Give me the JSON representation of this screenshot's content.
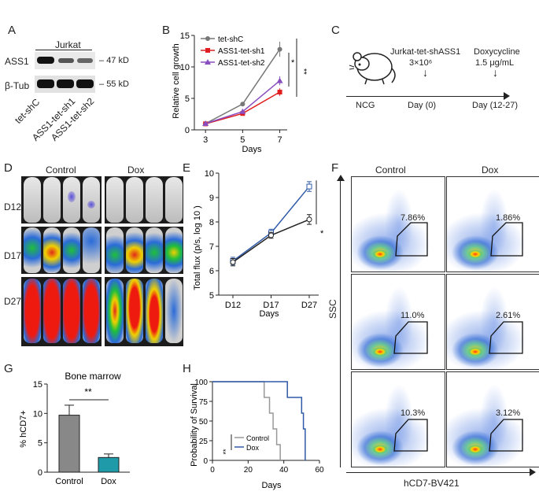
{
  "panel_labels": {
    "A": "A",
    "B": "B",
    "C": "C",
    "D": "D",
    "E": "E",
    "F": "F",
    "G": "G",
    "H": "H"
  },
  "panelA": {
    "header": "Jurkat",
    "rows": [
      {
        "name": "ASS1",
        "marker": "47 kD"
      },
      {
        "name": "β-Tub",
        "marker": "55 kD"
      }
    ],
    "lanes": [
      "tet-shC",
      "ASS1-tet-sh1",
      "ASS1-tet-sh2"
    ]
  },
  "panelB": {
    "ylabel": "Relative cell growth",
    "xlabel": "Days",
    "sig_upper": "*",
    "sig_lower": "**"
  },
  "panelC": {
    "host": "NCG",
    "step1_title": "Jurkat-tet-shASS1",
    "step1_dose": "3×10⁶",
    "step1_day": "Day (0)",
    "step2_title": "Doxycycline",
    "step2_dose": "1.5 μg/mL",
    "step2_day": "Day (12-27)"
  },
  "panelD": {
    "groups": [
      "Control",
      "Dox"
    ],
    "days": [
      "D12",
      "D17",
      "D27"
    ]
  },
  "panelE": {
    "ylabel": "Total flux (p/s, log 10 )",
    "xlabel": "Days",
    "sig": "*"
  },
  "panelF": {
    "groups": [
      "Control",
      "Dox"
    ],
    "ylabel": "SSC",
    "xlabel": "hCD7-BV421",
    "percentages": [
      [
        "7.86%",
        "1.86%"
      ],
      [
        "11.0%",
        "2.61%"
      ],
      [
        "10.3%",
        "3.12%"
      ]
    ]
  },
  "panelG": {
    "title": "Bone marrow",
    "ylabel": "% hCD7+",
    "sig": "**"
  },
  "panelH": {
    "ylabel": "Probability of Survival",
    "xlabel": "Days",
    "sig": "**"
  },
  "chart_data": [
    {
      "id": "B",
      "type": "line",
      "title": "",
      "xlabel": "Days",
      "ylabel": "Relative cell growth",
      "x": [
        3,
        5,
        7
      ],
      "xlim": [
        2.4,
        7.4
      ],
      "ylim": [
        0,
        15
      ],
      "yticks": [
        0,
        5,
        10,
        15
      ],
      "xticks": [
        3,
        5,
        7
      ],
      "series": [
        {
          "name": "tet-shC",
          "color": "#777777",
          "marker": "circle",
          "values": [
            1.0,
            4.1,
            12.8
          ],
          "err": [
            0.1,
            0.2,
            1.2
          ]
        },
        {
          "name": "ASS1-tet-sh1",
          "color": "#e02020",
          "marker": "square",
          "values": [
            0.95,
            2.6,
            6.0
          ],
          "err": [
            0.1,
            0.2,
            0.6
          ]
        },
        {
          "name": "ASS1-tet-sh2",
          "color": "#8a4fbf",
          "marker": "triangle",
          "values": [
            1.0,
            2.9,
            7.8
          ],
          "err": [
            0.1,
            0.2,
            0.7
          ]
        }
      ]
    },
    {
      "id": "E",
      "type": "line",
      "xlabel": "Days",
      "ylabel": "Total flux (p/s, log 10 )",
      "categories": [
        "D12",
        "D17",
        "D27"
      ],
      "ylim": [
        5,
        10
      ],
      "yticks": [
        5,
        6,
        7,
        8,
        9,
        10
      ],
      "series": [
        {
          "name": "Control",
          "color": "#2f5aa8",
          "marker": "square",
          "values": [
            6.4,
            7.55,
            9.45
          ],
          "err": [
            0.15,
            0.15,
            0.2
          ]
        },
        {
          "name": "Dox",
          "color": "#222222",
          "marker": "circle",
          "values": [
            6.35,
            7.45,
            8.1
          ],
          "err": [
            0.15,
            0.12,
            0.2
          ]
        }
      ]
    },
    {
      "id": "G",
      "type": "bar",
      "title": "Bone marrow",
      "ylabel": "% hCD7+",
      "categories": [
        "Control",
        "Dox"
      ],
      "values": [
        9.7,
        2.5
      ],
      "err": [
        1.7,
        0.6
      ],
      "colors": [
        "#888888",
        "#1f9aa8"
      ],
      "ylim": [
        0,
        15
      ],
      "yticks": [
        0,
        5,
        10,
        15
      ]
    },
    {
      "id": "H",
      "type": "line",
      "xlabel": "Days",
      "ylabel": "Probability of Survival",
      "xlim": [
        0,
        60
      ],
      "ylim": [
        0,
        100
      ],
      "xticks": [
        0,
        20,
        40,
        60
      ],
      "yticks": [
        0,
        25,
        50,
        75,
        100
      ],
      "series": [
        {
          "name": "Control",
          "color": "#999999",
          "steps": [
            [
              0,
              100
            ],
            [
              29,
              100
            ],
            [
              29,
              80
            ],
            [
              32,
              80
            ],
            [
              32,
              60
            ],
            [
              34,
              60
            ],
            [
              34,
              40
            ],
            [
              36,
              40
            ],
            [
              36,
              20
            ],
            [
              38,
              20
            ],
            [
              38,
              0
            ]
          ]
        },
        {
          "name": "Dox",
          "color": "#2f5aa8",
          "steps": [
            [
              0,
              100
            ],
            [
              42,
              100
            ],
            [
              42,
              80
            ],
            [
              50,
              80
            ],
            [
              50,
              60
            ],
            [
              51,
              60
            ],
            [
              51,
              40
            ],
            [
              52,
              40
            ],
            [
              52,
              0
            ]
          ]
        }
      ]
    }
  ]
}
